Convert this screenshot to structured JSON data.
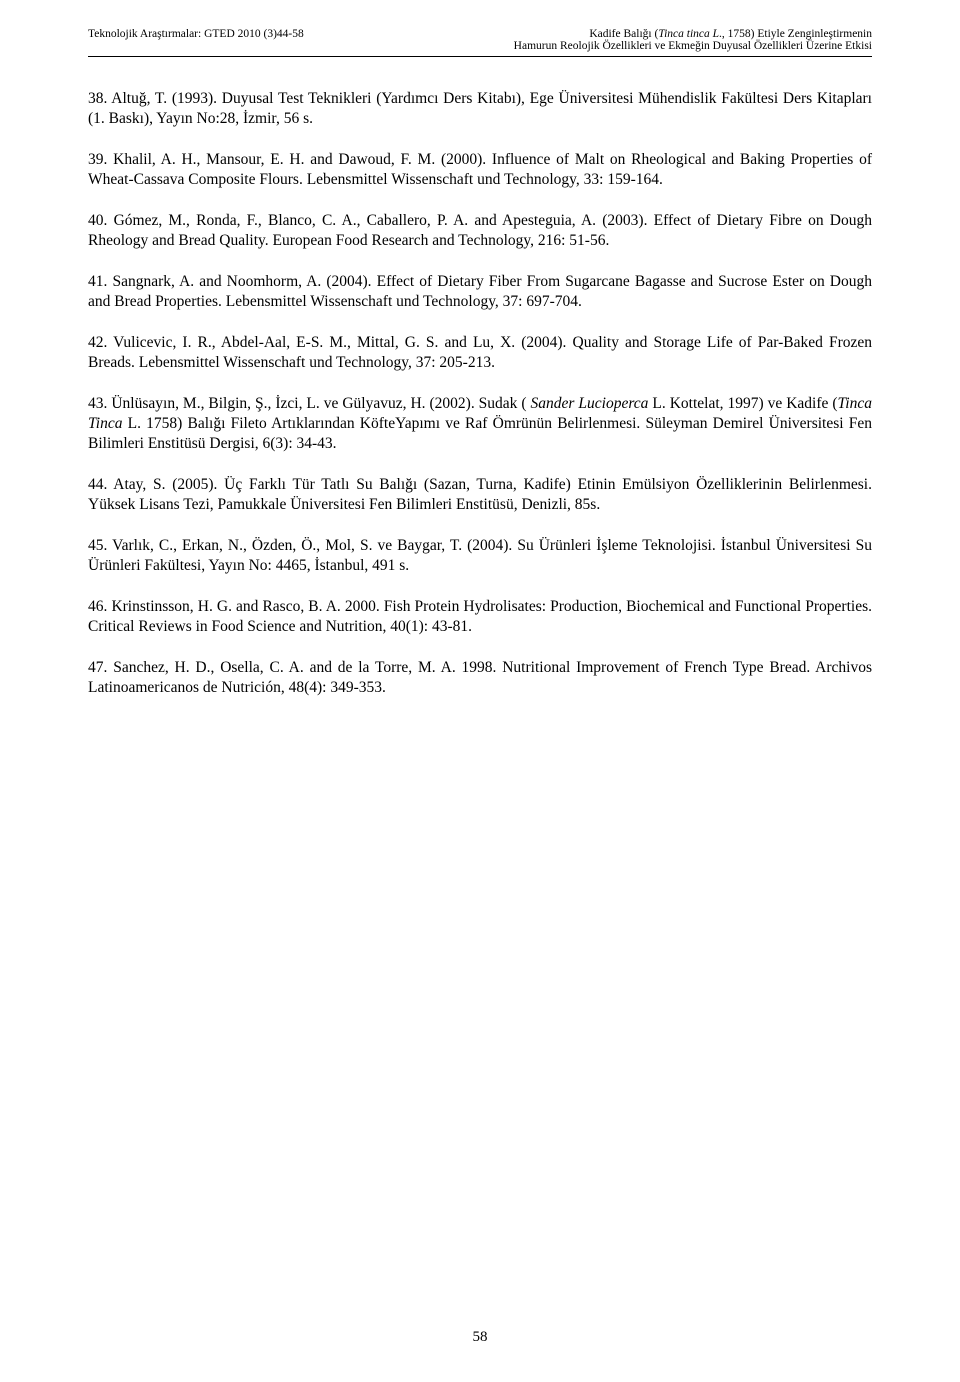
{
  "header": {
    "left": "Teknolojik Araştırmalar: GTED 2010 (3)44-58",
    "right_line1_pre": "Kadife Balığı (",
    "right_line1_italic": "Tinca tinca L",
    "right_line1_post": "., 1758) Etiyle Zenginleştirmenin",
    "right_line2": "Hamurun Reolojik Özellikleri ve Ekmeğin Duyusal Özellikleri Üzerine Etkisi"
  },
  "refs": {
    "r38": "38. Altuğ, T. (1993). Duyusal Test Teknikleri (Yardımcı Ders Kitabı), Ege Üniversitesi Mühendislik Fakültesi Ders Kitapları (1. Baskı), Yayın No:28, İzmir, 56 s.",
    "r39": "39. Khalil, A. H., Mansour, E. H. and Dawoud, F. M. (2000). Influence of Malt on Rheological and Baking Properties of Wheat-Cassava Composite Flours. Lebensmittel Wissenschaft und Technology, 33: 159-164.",
    "r40": "40. Gómez, M., Ronda, F., Blanco, C. A., Caballero, P. A. and Apesteguia, A. (2003). Effect of Dietary Fibre on Dough Rheology and Bread Quality. European Food Research and Technology, 216: 51-56.",
    "r41": "41. Sangnark, A. and Noomhorm, A. (2004). Effect of Dietary Fiber From Sugarcane Bagasse and Sucrose Ester on Dough and Bread Properties. Lebensmittel Wissenschaft und Technology, 37: 697-704.",
    "r42": "42. Vulicevic, I. R., Abdel-Aal, E-S. M., Mittal, G. S. and Lu, X. (2004). Quality and Storage Life of Par-Baked Frozen Breads. Lebensmittel Wissenschaft und Technology, 37: 205-213.",
    "r43_pre": "43. Ünlüsayın, M., Bilgin, Ş., İzci, L. ve Gülyavuz, H. (2002). Sudak ( ",
    "r43_italic1": "Sander Lucioperca",
    "r43_mid": " L. Kottelat, 1997) ve Kadife (",
    "r43_italic2": "Tinca Tinca",
    "r43_post": " L. 1758) Balığı Fileto Artıklarından KöfteYapımı ve Raf Ömrünün Belirlenmesi. Süleyman Demirel Üniversitesi Fen Bilimleri Enstitüsü Dergisi, 6(3): 34-43.",
    "r44": "44. Atay, S. (2005). Üç Farklı Tür Tatlı Su Balığı (Sazan, Turna, Kadife) Etinin Emülsiyon Özelliklerinin Belirlenmesi. Yüksek Lisans Tezi, Pamukkale Üniversitesi Fen Bilimleri Enstitüsü, Denizli, 85s.",
    "r45": "45. Varlık, C., Erkan, N., Özden, Ö., Mol, S. ve Baygar, T. (2004). Su Ürünleri İşleme Teknolojisi. İstanbul Üniversitesi Su Ürünleri Fakültesi, Yayın No: 4465, İstanbul, 491 s.",
    "r46": "46. Krinstinsson, H. G. and Rasco, B. A. 2000. Fish Protein Hydrolisates: Production, Biochemical and Functional Properties. Critical Reviews in Food Science and Nutrition, 40(1): 43-81.",
    "r47": "47. Sanchez, H. D., Osella, C. A. and de la Torre, M. A. 1998. Nutritional Improvement of French Type Bread. Archivos Latinoamericanos de Nutrición, 48(4): 349-353."
  },
  "page_number": "58"
}
